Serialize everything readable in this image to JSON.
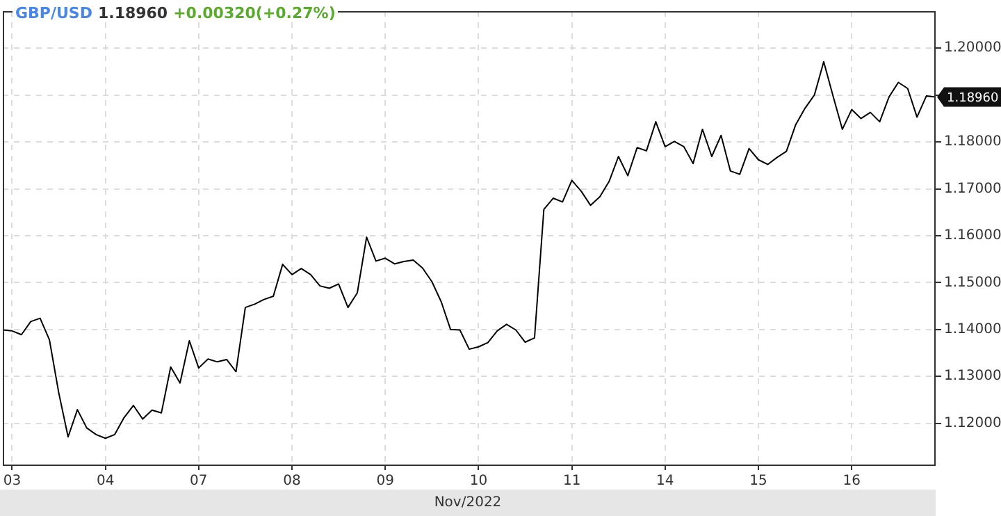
{
  "chart_data": {
    "type": "line",
    "title": "GBP/USD",
    "subtitle": "1.18960",
    "annotations": [
      "+0.00320(+0.27%)",
      "1.18960"
    ],
    "xlabel": "Nov/2022",
    "categories": [
      null,
      "03",
      null,
      null,
      null,
      null,
      null,
      null,
      null,
      null,
      null,
      "04",
      null,
      null,
      null,
      null,
      null,
      null,
      null,
      null,
      null,
      "07",
      null,
      null,
      null,
      null,
      null,
      null,
      null,
      null,
      null,
      "08",
      null,
      null,
      null,
      null,
      null,
      null,
      null,
      null,
      null,
      "09",
      null,
      null,
      null,
      null,
      null,
      null,
      null,
      null,
      null,
      "10",
      null,
      null,
      null,
      null,
      null,
      null,
      null,
      null,
      null,
      "11",
      null,
      null,
      null,
      null,
      null,
      null,
      null,
      null,
      null,
      "14",
      null,
      null,
      null,
      null,
      null,
      null,
      null,
      null,
      null,
      "15",
      null,
      null,
      null,
      null,
      null,
      null,
      null,
      null,
      null,
      "16",
      null,
      null,
      null,
      null,
      null,
      null,
      null,
      null,
      null
    ],
    "ylim": [
      1.1112,
      1.2079
    ],
    "yticks": [
      {
        "value": 1.12,
        "label": "1.12000"
      },
      {
        "value": 1.13,
        "label": "1.13000"
      },
      {
        "value": 1.14,
        "label": "1.14000"
      },
      {
        "value": 1.15,
        "label": "1.15000"
      },
      {
        "value": 1.16,
        "label": "1.16000"
      },
      {
        "value": 1.17,
        "label": "1.17000"
      },
      {
        "value": 1.18,
        "label": "1.18000"
      },
      {
        "value": 1.19,
        "label": null
      },
      {
        "value": 1.2,
        "label": "1.20000"
      }
    ],
    "grid": true,
    "series": [
      {
        "color": "#000000",
        "values": [
          1.1399,
          1.1397,
          1.1389,
          1.1417,
          1.1424,
          1.1378,
          1.1265,
          1.1171,
          1.1229,
          1.119,
          1.1176,
          1.1168,
          1.1176,
          1.1212,
          1.1238,
          1.1209,
          1.1228,
          1.1222,
          1.132,
          1.1286,
          1.1376,
          1.1318,
          1.1337,
          1.1331,
          1.1336,
          1.131,
          1.1447,
          1.1454,
          1.1464,
          1.1471,
          1.1539,
          1.1517,
          1.153,
          1.1517,
          1.1493,
          1.1488,
          1.1497,
          1.1447,
          1.1478,
          1.1597,
          1.1546,
          1.1552,
          1.154,
          1.1545,
          1.1548,
          1.1531,
          1.1502,
          1.1459,
          1.14,
          1.1399,
          1.1358,
          1.1363,
          1.1372,
          1.1397,
          1.1411,
          1.1399,
          1.1373,
          1.1382,
          1.1656,
          1.168,
          1.1672,
          1.1718,
          1.1695,
          1.1665,
          1.1683,
          1.1716,
          1.1769,
          1.1728,
          1.1788,
          1.1781,
          1.1843,
          1.179,
          1.1801,
          1.179,
          1.1754,
          1.1827,
          1.1769,
          1.1814,
          1.1738,
          1.1731,
          1.1786,
          1.1762,
          1.1752,
          1.1767,
          1.178,
          1.1837,
          1.1872,
          1.19,
          1.1971,
          1.1898,
          1.1827,
          1.1869,
          1.185,
          1.1863,
          1.1843,
          1.1896,
          1.1927,
          1.1914,
          1.1853,
          1.1898,
          1.1896
        ]
      }
    ]
  }
}
